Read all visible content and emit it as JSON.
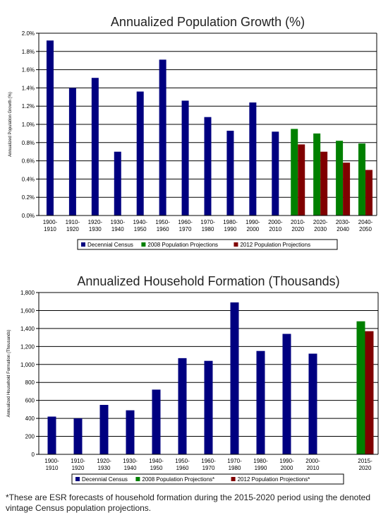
{
  "colors": {
    "decennial": "#000080",
    "proj2008": "#008000",
    "proj2012": "#800000",
    "grid": "#000000"
  },
  "footnote": "*These are ESR forecasts of household formation during the 2015-2020 period using the denoted vintage Census population projections.",
  "chart_data": [
    {
      "type": "bar",
      "title": "Annualized Population Growth (%)",
      "ylabel": "Annualized Population Growth (%)",
      "xlabel": "",
      "ylim": [
        0,
        2.0
      ],
      "yticks": [
        "0.0%",
        "0.2%",
        "0.4%",
        "0.6%",
        "0.8%",
        "1.0%",
        "1.2%",
        "1.4%",
        "1.6%",
        "1.8%",
        "2.0%"
      ],
      "categories": [
        "1900-1910",
        "1910-1920",
        "1920-1930",
        "1930-1940",
        "1940-1950",
        "1950-1960",
        "1960-1970",
        "1970-1980",
        "1980-1990",
        "1990-2000",
        "2000-2010",
        "2010-2020",
        "2020-2030",
        "2030-2040",
        "2040-2050"
      ],
      "series": [
        {
          "name": "Decennial Census",
          "values": [
            1.92,
            1.4,
            1.51,
            0.7,
            1.36,
            1.71,
            1.26,
            1.08,
            0.93,
            1.24,
            0.92,
            null,
            null,
            null,
            null
          ]
        },
        {
          "name": "2008 Population Projections",
          "values": [
            null,
            null,
            null,
            null,
            null,
            null,
            null,
            null,
            null,
            null,
            null,
            0.95,
            0.9,
            0.82,
            0.79
          ]
        },
        {
          "name": "2012 Population Projections",
          "values": [
            null,
            null,
            null,
            null,
            null,
            null,
            null,
            null,
            null,
            null,
            null,
            0.78,
            0.7,
            0.58,
            0.5
          ]
        }
      ],
      "grid": true,
      "legend": "bottom"
    },
    {
      "type": "bar",
      "title": "Annualized Household Formation (Thousands)",
      "ylabel": "Annualized Household Formation (Thousands)",
      "xlabel": "",
      "ylim": [
        0,
        1800
      ],
      "yticks": [
        "0",
        "200",
        "400",
        "600",
        "800",
        "1,000",
        "1,200",
        "1,400",
        "1,600",
        "1,800"
      ],
      "categories": [
        "1900-1910",
        "1910-1920",
        "1920-1930",
        "1930-1940",
        "1940-1950",
        "1950-1960",
        "1960-1970",
        "1970-1980",
        "1980-1990",
        "1990-2000",
        "2000-2010",
        "",
        "2015-2020"
      ],
      "series": [
        {
          "name": "Decennial Census",
          "values": [
            420,
            400,
            550,
            490,
            720,
            1070,
            1040,
            1690,
            1150,
            1340,
            1120,
            null,
            null
          ]
        },
        {
          "name": "2008 Population Projections*",
          "values": [
            null,
            null,
            null,
            null,
            null,
            null,
            null,
            null,
            null,
            null,
            null,
            null,
            1480
          ]
        },
        {
          "name": "2012 Population Projections*",
          "values": [
            null,
            null,
            null,
            null,
            null,
            null,
            null,
            null,
            null,
            null,
            null,
            null,
            1370
          ]
        }
      ],
      "grid": true,
      "legend": "bottom"
    }
  ]
}
